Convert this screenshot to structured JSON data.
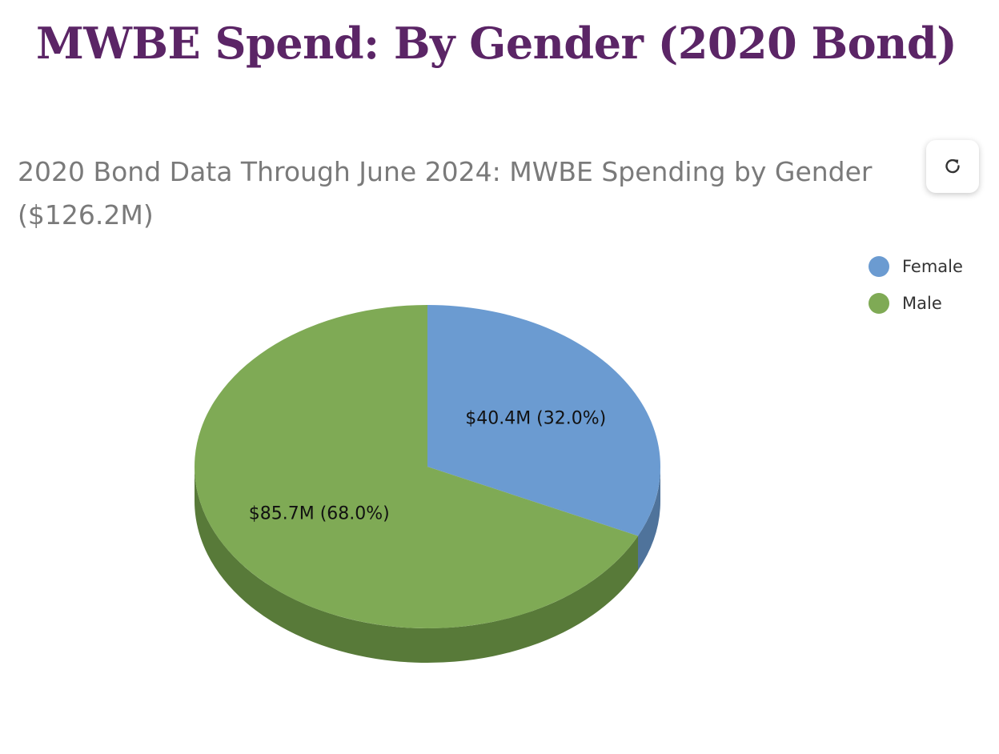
{
  "page": {
    "title": "MWBE Spend: By Gender (2020 Bond)"
  },
  "toolbar": {
    "refresh_icon": "refresh-icon"
  },
  "chart_data": {
    "type": "pie",
    "title": "2020 Bond Data Through June 2024: MWBE Spending by Gender ($126.2M)",
    "style": "3d",
    "legend_position": "top-right",
    "slices": [
      {
        "name": "Female",
        "value": 40.4,
        "percent": 32.0,
        "label": "$40.4M (32.0%)",
        "color": "#6b9bd1",
        "side_color": "#4f739b"
      },
      {
        "name": "Male",
        "value": 85.7,
        "percent": 68.0,
        "label": "$85.7M (68.0%)",
        "color": "#7faa55",
        "side_color": "#587a39"
      }
    ]
  }
}
